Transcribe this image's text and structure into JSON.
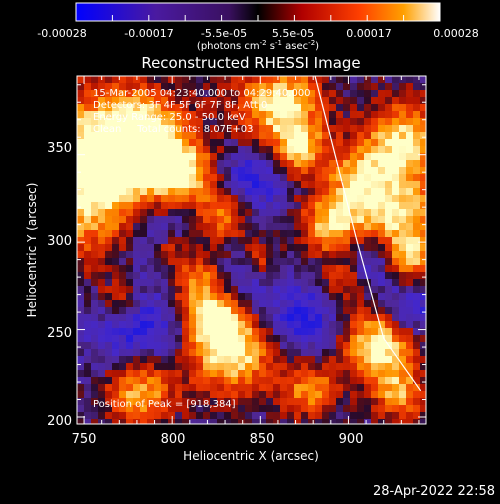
{
  "colorbar": {
    "ticks": [
      "-0.00028",
      "-0.00017",
      "-5.5e-05",
      "5.5e-05",
      "0.00017",
      "0.00028"
    ],
    "units_main": "(photons cm",
    "units_exp1": "-2",
    "units_s": " s",
    "units_exp2": "-1",
    "units_asec": " asec",
    "units_exp3": "-2",
    "units_close": ")"
  },
  "image": {
    "title": "Reconstructed RHESSI Image",
    "annotations": [
      "15-Mar-2005 04:23:40.000 to 04:29:40.000",
      "Detectors: 3F 4F 5F 6F 7F 8F, Att 0",
      "Energy Range: 25.0 - 50.0 keV",
      "Clean     Total counts: 8.07E+03"
    ],
    "peak_text": "Position of Peak = [918,384]",
    "x_axis_label": "Heliocentric X (arcsec)",
    "y_axis_label": "Heliocentric Y (arcsec)",
    "x_ticks": [
      "750",
      "800",
      "850",
      "900"
    ],
    "y_ticks": [
      "200",
      "250",
      "300",
      "350"
    ],
    "x_range": [
      746,
      944
    ],
    "y_range": [
      196,
      395
    ],
    "limb_points": [
      [
        881,
        395
      ],
      [
        905,
        300
      ],
      [
        920,
        245
      ],
      [
        941,
        215
      ]
    ]
  },
  "footer": {
    "timestamp": "28-Apr-2022 22:58"
  }
}
